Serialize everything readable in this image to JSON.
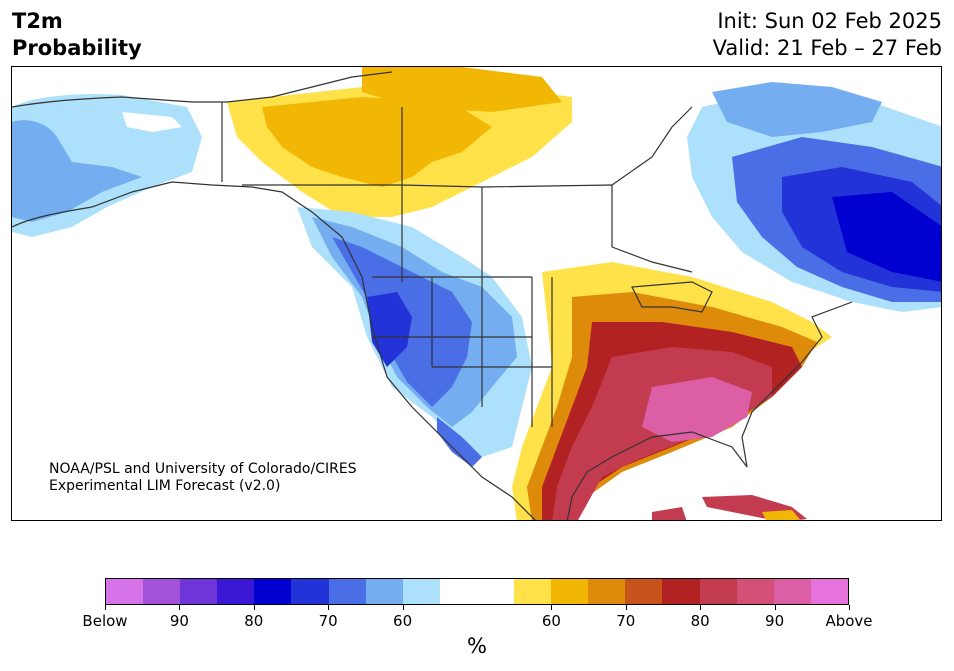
{
  "header": {
    "title_line1": "T2m",
    "title_line2": "Probability",
    "init": "Init: Sun 02 Feb 2025",
    "valid": "Valid: 21 Feb – 27 Feb"
  },
  "credit": {
    "line1": "NOAA/PSL and University of Colorado/CIRES",
    "line2": "Experimental LIM Forecast (v2.0)"
  },
  "colorbar": {
    "colors": [
      "#d673e8",
      "#a152d9",
      "#7035d9",
      "#3a18d6",
      "#0000d0",
      "#2233d8",
      "#4a6ee6",
      "#74aef0",
      "#ade0fa",
      "#ffffff",
      "#ffffff",
      "#ffe24a",
      "#f2b705",
      "#de8a0b",
      "#c8541b",
      "#b32222",
      "#c33b4e",
      "#d45076",
      "#dc5ea5",
      "#e673dc"
    ],
    "tick_labels": [
      "Below",
      "90",
      "80",
      "70",
      "60",
      "60",
      "70",
      "80",
      "90",
      "Above"
    ],
    "unit": "%"
  }
}
